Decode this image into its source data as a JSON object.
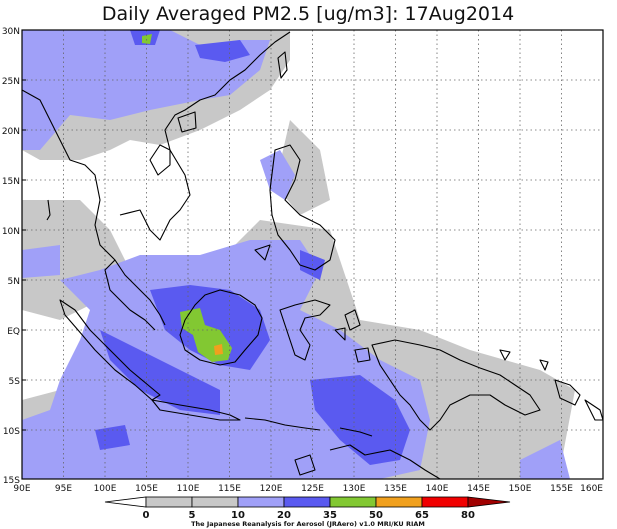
{
  "title": "Daily Averaged PM2.5 [ug/m3]: 17Aug2014",
  "credit": "The Japanese Reanalysis for Aerosol (JRAero) v1.0 MRI/KU RIAM",
  "lat_ticks": [
    "30N",
    "25N",
    "20N",
    "15N",
    "10N",
    "5N",
    "EQ",
    "5S",
    "10S",
    "15S"
  ],
  "lon_ticks": [
    "90E",
    "95E",
    "100E",
    "105E",
    "110E",
    "115E",
    "120E",
    "125E",
    "130E",
    "135E",
    "140E",
    "145E",
    "150E",
    "155E",
    "160E"
  ],
  "colorbar": {
    "levels": [
      "0",
      "5",
      "10",
      "20",
      "35",
      "50",
      "65",
      "80"
    ],
    "colors": [
      "#ffffff",
      "#c8c8c8",
      "#a0a0f8",
      "#5a5af0",
      "#82c832",
      "#f0a01e",
      "#f00000",
      "#a00000"
    ]
  },
  "domain": {
    "lon": [
      90,
      160
    ],
    "lat": [
      -15,
      30
    ]
  }
}
